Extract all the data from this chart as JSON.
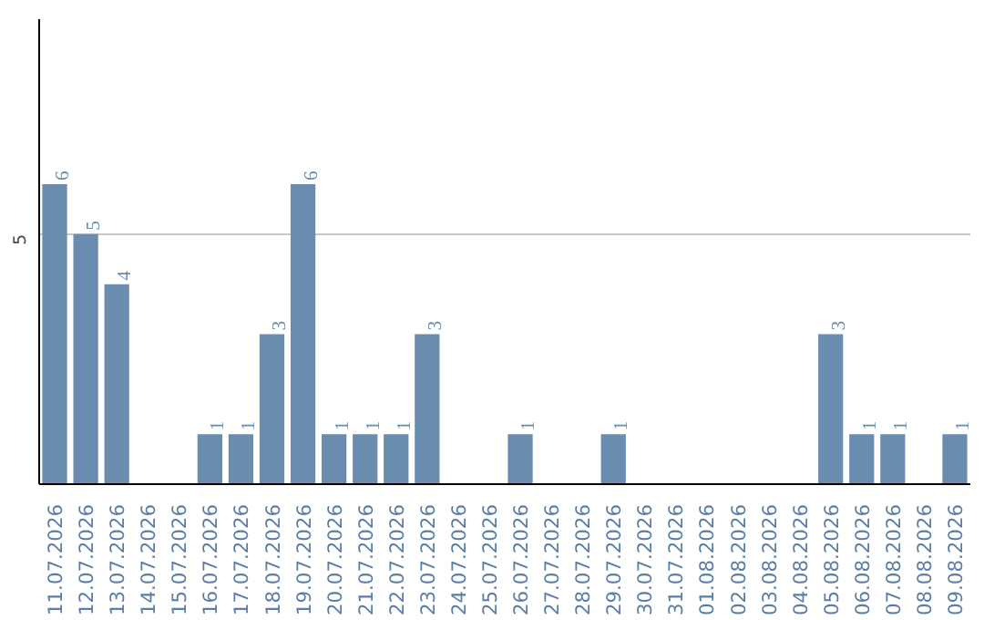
{
  "chart_data": {
    "type": "bar",
    "categories": [
      "11.07.2026",
      "12.07.2026",
      "13.07.2026",
      "14.07.2026",
      "15.07.2026",
      "16.07.2026",
      "17.07.2026",
      "18.07.2026",
      "19.07.2026",
      "20.07.2026",
      "21.07.2026",
      "22.07.2026",
      "23.07.2026",
      "24.07.2026",
      "25.07.2026",
      "26.07.2026",
      "27.07.2026",
      "28.07.2026",
      "29.07.2026",
      "30.07.2026",
      "31.07.2026",
      "01.08.2026",
      "02.08.2026",
      "03.08.2026",
      "04.08.2026",
      "05.08.2026",
      "06.08.2026",
      "07.08.2026",
      "08.08.2026",
      "09.08.2026"
    ],
    "values": [
      6,
      5,
      4,
      0,
      0,
      1,
      1,
      3,
      6,
      1,
      1,
      1,
      3,
      0,
      0,
      1,
      0,
      0,
      1,
      0,
      0,
      0,
      0,
      0,
      0,
      3,
      1,
      1,
      0,
      1
    ],
    "value_labels": [
      "6",
      "5",
      "4",
      null,
      null,
      "1",
      "1",
      "3",
      "6",
      "1",
      "1",
      "1",
      "3",
      null,
      null,
      "1",
      null,
      null,
      "1",
      null,
      null,
      null,
      null,
      null,
      null,
      "3",
      "1",
      "1",
      null,
      "1"
    ],
    "color": "#6a8caf",
    "ylim": [
      0,
      9.3
    ],
    "yticks": [
      5
    ],
    "grid": "y"
  }
}
